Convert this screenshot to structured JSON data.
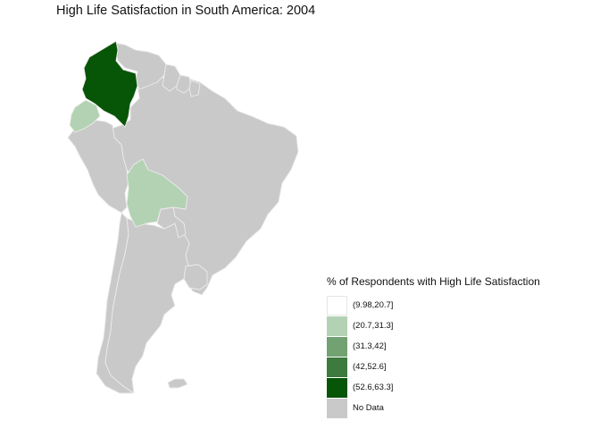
{
  "title": "High Life Satisfaction in South America: 2004",
  "legend": {
    "title": "% of Respondents with High Life Satisfaction",
    "items": [
      {
        "label": "(9.98,20.7]",
        "color": "#ffffff"
      },
      {
        "label": "(20.7,31.3]",
        "color": "#b3d2b3"
      },
      {
        "label": "(31.3,42]",
        "color": "#72a272"
      },
      {
        "label": "(42,52.6]",
        "color": "#3d7a3d"
      },
      {
        "label": "(52.6,63.3]",
        "color": "#075507"
      },
      {
        "label": "No Data",
        "color": "#c9c9c9"
      }
    ]
  },
  "regions": [
    {
      "name": "Colombia",
      "class": "(52.6,63.3]"
    },
    {
      "name": "Ecuador",
      "class": "(20.7,31.3]"
    },
    {
      "name": "Bolivia",
      "class": "(20.7,31.3]"
    },
    {
      "name": "Venezuela",
      "class": "No Data"
    },
    {
      "name": "Guyana",
      "class": "No Data"
    },
    {
      "name": "Suriname",
      "class": "No Data"
    },
    {
      "name": "French Guiana",
      "class": "No Data"
    },
    {
      "name": "Peru",
      "class": "No Data"
    },
    {
      "name": "Brazil",
      "class": "No Data"
    },
    {
      "name": "Paraguay",
      "class": "No Data"
    },
    {
      "name": "Chile",
      "class": "No Data"
    },
    {
      "name": "Argentina",
      "class": "No Data"
    },
    {
      "name": "Uruguay",
      "class": "No Data"
    },
    {
      "name": "Falkland Islands",
      "class": "No Data"
    }
  ],
  "colors": {
    "nodata": "#c9c9c9",
    "border": "#ececec",
    "background": "#ffffff"
  }
}
